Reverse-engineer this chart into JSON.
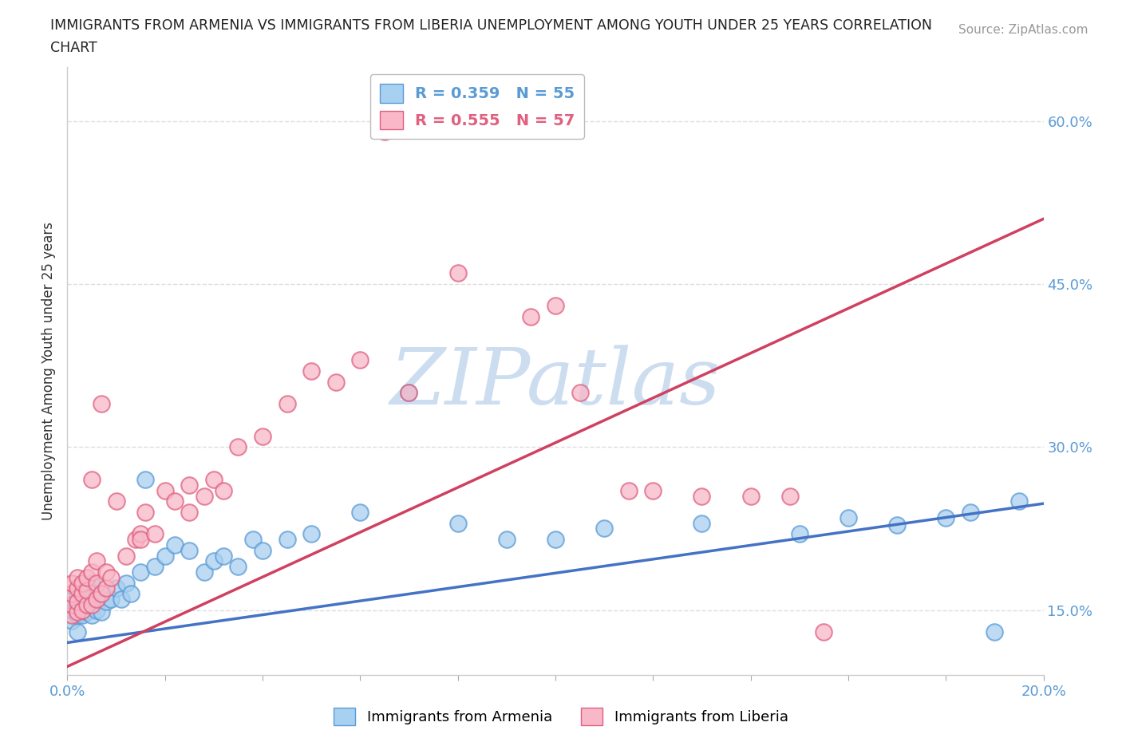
{
  "title_line1": "IMMIGRANTS FROM ARMENIA VS IMMIGRANTS FROM LIBERIA UNEMPLOYMENT AMONG YOUTH UNDER 25 YEARS CORRELATION",
  "title_line2": "CHART",
  "source": "Source: ZipAtlas.com",
  "ylabel": "Unemployment Among Youth under 25 years",
  "xlim": [
    0.0,
    0.2
  ],
  "ylim": [
    0.09,
    0.65
  ],
  "xticks": [
    0.0,
    0.02,
    0.04,
    0.06,
    0.08,
    0.1,
    0.12,
    0.14,
    0.16,
    0.18,
    0.2
  ],
  "yticks": [
    0.15,
    0.3,
    0.45,
    0.6
  ],
  "ytick_labels": [
    "15.0%",
    "30.0%",
    "45.0%",
    "60.0%"
  ],
  "legend_r_armenia": "R = 0.359   N = 55",
  "legend_r_liberia": "R = 0.555   N = 57",
  "color_armenia": "#A8D0F0",
  "color_liberia": "#F8B8C8",
  "edge_color_armenia": "#5B9BD5",
  "edge_color_liberia": "#E06080",
  "line_color_armenia": "#4472C4",
  "line_color_liberia": "#D04060",
  "watermark": "ZIPatlas",
  "watermark_color": "#C5D8EE",
  "background_color": "#FFFFFF",
  "grid_color": "#DDDDDD",
  "armenia_line_x": [
    0.0,
    0.2
  ],
  "armenia_line_y": [
    0.12,
    0.248
  ],
  "liberia_line_x": [
    0.0,
    0.2
  ],
  "liberia_line_y": [
    0.098,
    0.51
  ],
  "armenia_x": [
    0.001,
    0.001,
    0.001,
    0.001,
    0.002,
    0.002,
    0.002,
    0.002,
    0.003,
    0.003,
    0.003,
    0.004,
    0.004,
    0.004,
    0.005,
    0.005,
    0.005,
    0.006,
    0.006,
    0.007,
    0.007,
    0.008,
    0.009,
    0.01,
    0.011,
    0.012,
    0.013,
    0.015,
    0.016,
    0.018,
    0.02,
    0.022,
    0.025,
    0.028,
    0.03,
    0.032,
    0.035,
    0.038,
    0.04,
    0.045,
    0.05,
    0.06,
    0.07,
    0.08,
    0.09,
    0.1,
    0.11,
    0.13,
    0.15,
    0.16,
    0.17,
    0.18,
    0.185,
    0.19,
    0.195
  ],
  "armenia_y": [
    0.14,
    0.15,
    0.155,
    0.16,
    0.13,
    0.145,
    0.155,
    0.165,
    0.145,
    0.155,
    0.17,
    0.148,
    0.158,
    0.168,
    0.145,
    0.16,
    0.175,
    0.15,
    0.165,
    0.148,
    0.165,
    0.158,
    0.16,
    0.17,
    0.16,
    0.175,
    0.165,
    0.185,
    0.27,
    0.19,
    0.2,
    0.21,
    0.205,
    0.185,
    0.195,
    0.2,
    0.19,
    0.215,
    0.205,
    0.215,
    0.22,
    0.24,
    0.35,
    0.23,
    0.215,
    0.215,
    0.225,
    0.23,
    0.22,
    0.235,
    0.228,
    0.235,
    0.24,
    0.13,
    0.25
  ],
  "liberia_x": [
    0.001,
    0.001,
    0.001,
    0.001,
    0.002,
    0.002,
    0.002,
    0.002,
    0.003,
    0.003,
    0.003,
    0.004,
    0.004,
    0.004,
    0.005,
    0.005,
    0.005,
    0.006,
    0.006,
    0.006,
    0.007,
    0.007,
    0.008,
    0.008,
    0.009,
    0.01,
    0.012,
    0.014,
    0.015,
    0.015,
    0.016,
    0.018,
    0.02,
    0.022,
    0.025,
    0.025,
    0.028,
    0.03,
    0.032,
    0.035,
    0.04,
    0.045,
    0.05,
    0.055,
    0.06,
    0.065,
    0.07,
    0.08,
    0.095,
    0.1,
    0.105,
    0.115,
    0.12,
    0.13,
    0.14,
    0.148,
    0.155
  ],
  "liberia_y": [
    0.145,
    0.155,
    0.165,
    0.175,
    0.148,
    0.158,
    0.17,
    0.18,
    0.15,
    0.165,
    0.175,
    0.155,
    0.168,
    0.18,
    0.155,
    0.27,
    0.185,
    0.16,
    0.175,
    0.195,
    0.165,
    0.34,
    0.17,
    0.185,
    0.18,
    0.25,
    0.2,
    0.215,
    0.22,
    0.215,
    0.24,
    0.22,
    0.26,
    0.25,
    0.24,
    0.265,
    0.255,
    0.27,
    0.26,
    0.3,
    0.31,
    0.34,
    0.37,
    0.36,
    0.38,
    0.59,
    0.35,
    0.46,
    0.42,
    0.43,
    0.35,
    0.26,
    0.26,
    0.255,
    0.255,
    0.255,
    0.13
  ]
}
